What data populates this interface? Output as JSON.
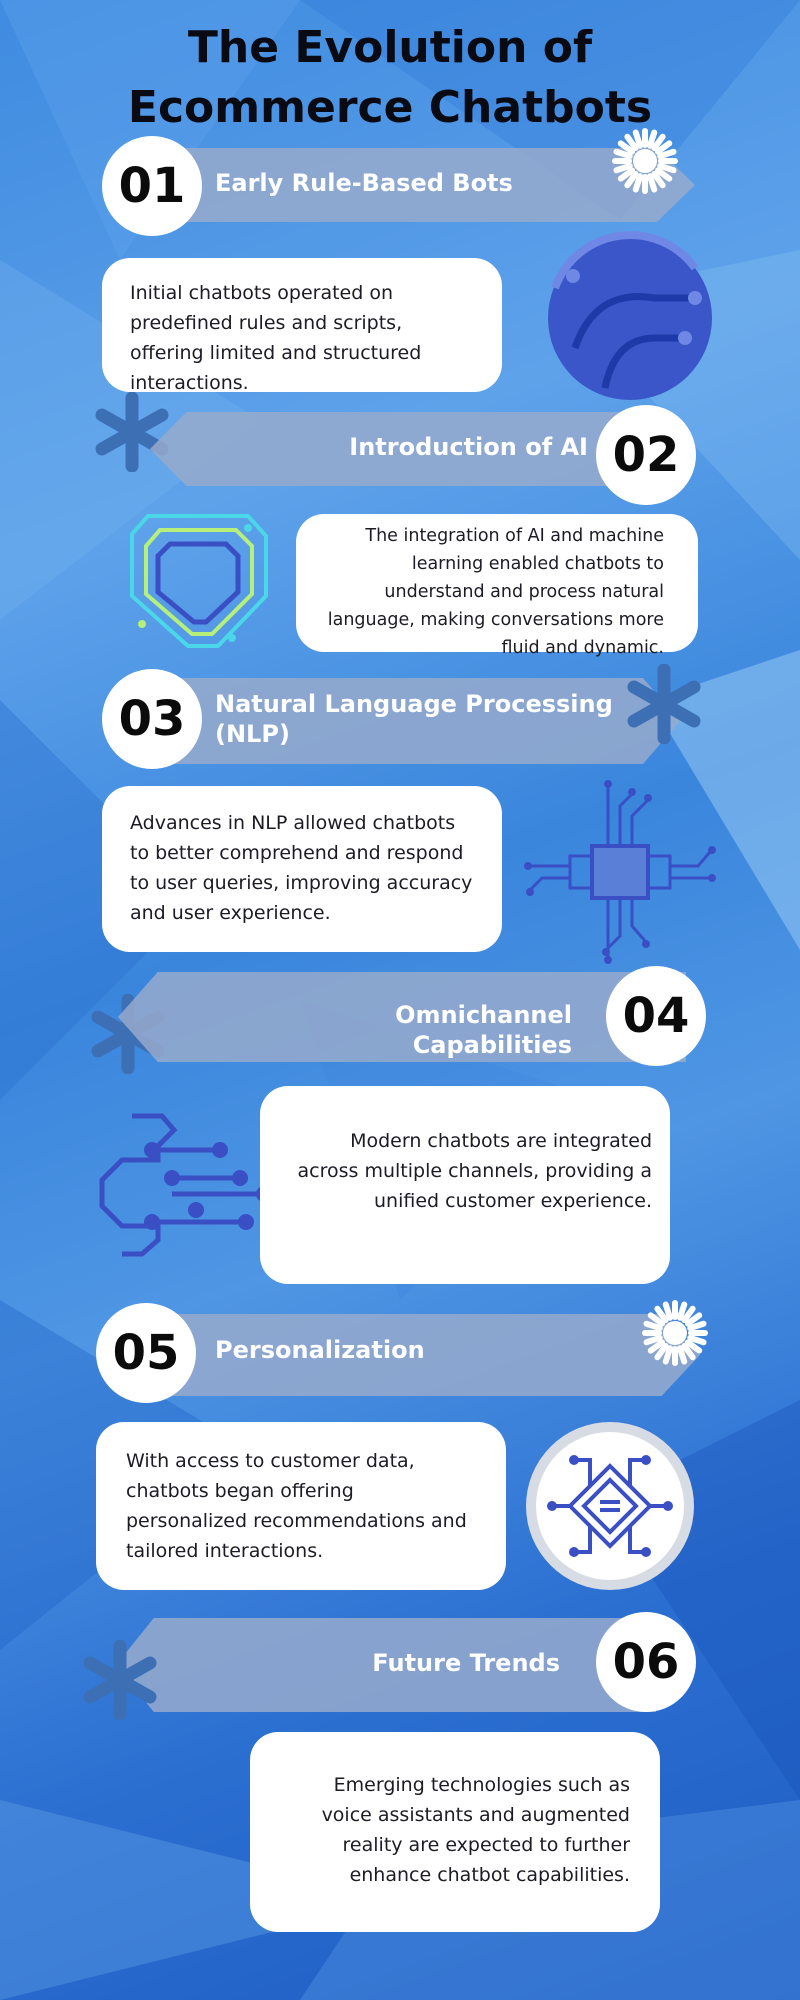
{
  "title": {
    "line1": "The Evolution of",
    "line2": "Ecommerce Chatbots"
  },
  "sections": [
    {
      "number": "01",
      "heading": "Early Rule-Based Bots",
      "text": "Initial chatbots operated on predefined rules and scripts, offering limited and structured interactions.",
      "decoration_icon": "circuit-globe-icon"
    },
    {
      "number": "02",
      "heading": "Introduction of AI",
      "text": "The integration of AI and machine learning enabled chatbots to understand and process natural language, making conversations more fluid and dynamic.",
      "decoration_icon": "circuit-shield-icon"
    },
    {
      "number": "03",
      "heading": "Natural Language Processing (NLP)",
      "text": "Advances in NLP allowed chatbots to better comprehend and respond to user queries, improving accuracy and user experience.",
      "decoration_icon": "microchip-icon"
    },
    {
      "number": "04",
      "heading": "Omnichannel Capabilities",
      "text": "Modern chatbots are integrated across multiple channels, providing a unified customer experience.",
      "decoration_icon": "circuit-brain-icon"
    },
    {
      "number": "05",
      "heading": "Personalization",
      "text": "With access to customer data, chatbots began offering personalized recommendations and tailored interactions.",
      "decoration_icon": "circuit-badge-icon"
    },
    {
      "number": "06",
      "heading": "Future Trends",
      "text": "Emerging technologies such as voice assistants and augmented reality are expected to further enhance chatbot capabilities.",
      "decoration_icon": "asterisk-icon"
    }
  ],
  "colors": {
    "background": "#3f8be0",
    "banner": "#96aacd",
    "card": "#ffffff",
    "title_text": "#0a0a12",
    "accent_icon": "#3a4fc4"
  }
}
